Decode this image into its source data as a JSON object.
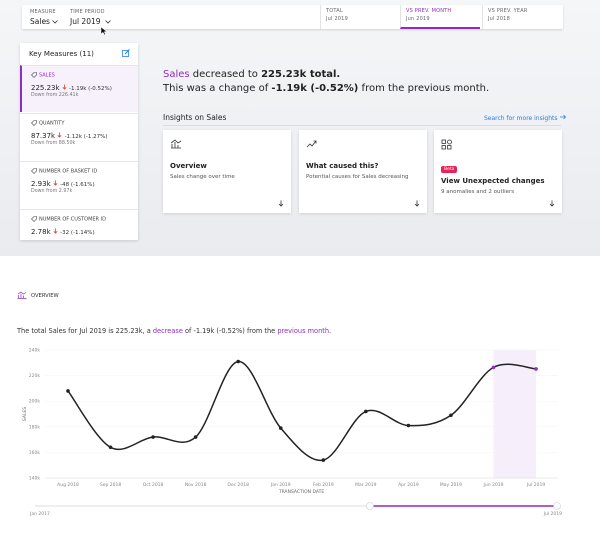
{
  "header": {
    "measure_label": "MEASURE",
    "measure": "Sales",
    "period_label": "TIME PERIOD",
    "period": "Jul 2019"
  },
  "tabs": [
    {
      "label": "TOTAL",
      "sub": "Jul 2019"
    },
    {
      "label": "VS PREV. MONTH",
      "sub": "Jun 2019"
    },
    {
      "label": "VS PREV. YEAR",
      "sub": "Jul 2018"
    }
  ],
  "key_measures": {
    "title": "Key Measures (11)",
    "items": [
      {
        "name": "SALES",
        "value": "225.23k",
        "change": "-1.19k (-0.52%)",
        "note": "Down from 226.41k"
      },
      {
        "name": "QUANTITY",
        "value": "87.37k",
        "change": "-1.12k (-1.27%)",
        "note": "Down from 88.50k"
      },
      {
        "name": "NUMBER OF BASKET ID",
        "value": "2.93k",
        "change": "-48 (-1.61%)",
        "note": "Down from 2.97k"
      },
      {
        "name": "NUMBER OF CUSTOMER ID",
        "value": "2.78k",
        "change": "-32 (-1.14%)"
      }
    ]
  },
  "summary": {
    "measure": "Sales",
    "verb": " decreased to ",
    "total": "225.23k total.",
    "line2_pre": "This was a change of ",
    "line2_change": "-1.19k (-0.52%)",
    "line2_post": " from the previous month."
  },
  "insights": {
    "title": "Insights on Sales",
    "search": "Search for more insights",
    "cards": [
      {
        "title": "Overview",
        "text": "Sales change over time"
      },
      {
        "title": "What caused this?",
        "text": "Potential causes for Sales decreasing"
      },
      {
        "badge": "Beta",
        "title": "View Unexpected changes",
        "text": "9 anomalies and 2 outliers"
      }
    ]
  },
  "overview": {
    "title": "OVERVIEW",
    "sentence": [
      "The total Sales for Jul 2019 is 225.23k, a ",
      "decrease",
      " of -1.19k (-0.52%) from the ",
      "previous month",
      "."
    ]
  },
  "chart_data": {
    "type": "line",
    "categories": [
      "Aug 2018",
      "Sep 2018",
      "Oct 2018",
      "Nov 2018",
      "Dec 2018",
      "Jan 2019",
      "Feb 2019",
      "Mar 2019",
      "Apr 2019",
      "May 2019",
      "Jun 2019",
      "Jul 2019"
    ],
    "series": [
      {
        "name": "Sales",
        "color": "#222222",
        "values": [
          208000,
          164000,
          172000,
          172000,
          231000,
          179000,
          154000,
          192000,
          181000,
          189000,
          226410,
          225230
        ]
      }
    ],
    "ylim": [
      140000,
      240000
    ],
    "yticks": [
      {
        "value": 140000,
        "label": "140k"
      },
      {
        "value": 160000,
        "label": "160k"
      },
      {
        "value": 180000,
        "label": "180k"
      },
      {
        "value": 200000,
        "label": "200k"
      },
      {
        "value": 220000,
        "label": "220k"
      },
      {
        "value": 240000,
        "label": "240k"
      }
    ],
    "y_label": "SALES",
    "x_label": "TRANSACTION DATE",
    "grid": true
  },
  "range": {
    "start": "Jan 2017",
    "end": "Jul 2019"
  }
}
